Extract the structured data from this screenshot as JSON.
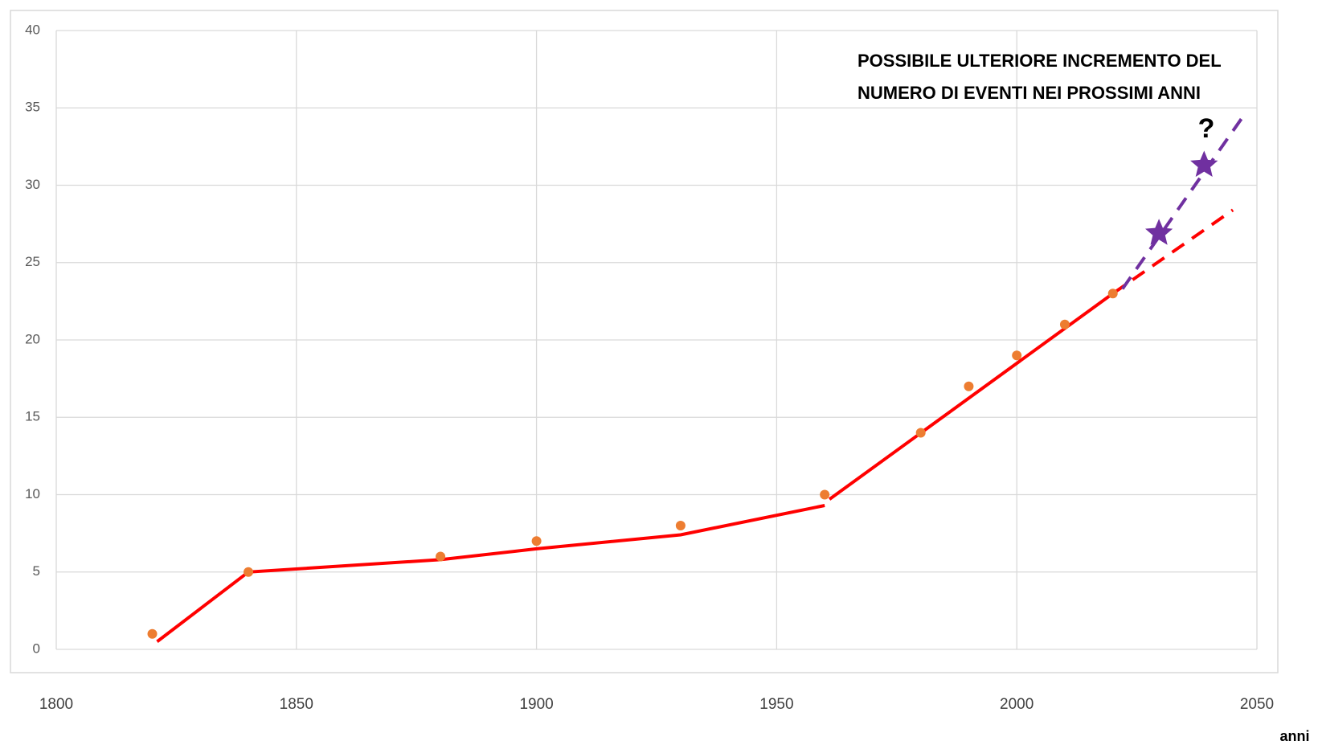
{
  "chart_data": {
    "type": "scatter",
    "annotation": [
      "POSSIBILE ULTERIORE INCREMENTO DEL",
      "NUMERO DI EVENTI NEI PROSSIMI ANNI"
    ],
    "question_mark": "?",
    "x_label": "anni",
    "xlim": [
      1800,
      2050
    ],
    "xticks": [
      1800,
      1850,
      1900,
      1950,
      2000,
      2050
    ],
    "ylim": [
      0,
      40
    ],
    "yticks": [
      0,
      5,
      10,
      15,
      20,
      25,
      30,
      35,
      40
    ],
    "grid": true,
    "series": [
      {
        "type": "line",
        "style": "solid",
        "color": "#ff0000",
        "x": [
          1821,
          1840,
          1880,
          1900,
          1930,
          1960,
          null,
          1961,
          2020
        ],
        "values": [
          0.5,
          5,
          5.8,
          6.5,
          7.4,
          9.3,
          null,
          9.7,
          23
        ]
      },
      {
        "type": "line",
        "style": "dashed",
        "color": "#ff0000",
        "x": [
          2020,
          2045
        ],
        "values": [
          23,
          28.4
        ]
      },
      {
        "type": "line",
        "style": "dashed",
        "color": "#7030a0",
        "x": [
          2022,
          2047
        ],
        "values": [
          23.3,
          34.4
        ]
      },
      {
        "type": "points",
        "color": "#ed7d31",
        "x": [
          1820,
          1840,
          1880,
          1900,
          1930,
          1960,
          1980,
          1990,
          2000,
          2010,
          2020
        ],
        "values": [
          1,
          5,
          6,
          7,
          8,
          10,
          14,
          17,
          19,
          21,
          23
        ]
      },
      {
        "type": "stars",
        "color": "#7030a0",
        "x": [
          2029.6,
          2039
        ],
        "values": [
          26.9,
          31.3
        ]
      }
    ]
  }
}
